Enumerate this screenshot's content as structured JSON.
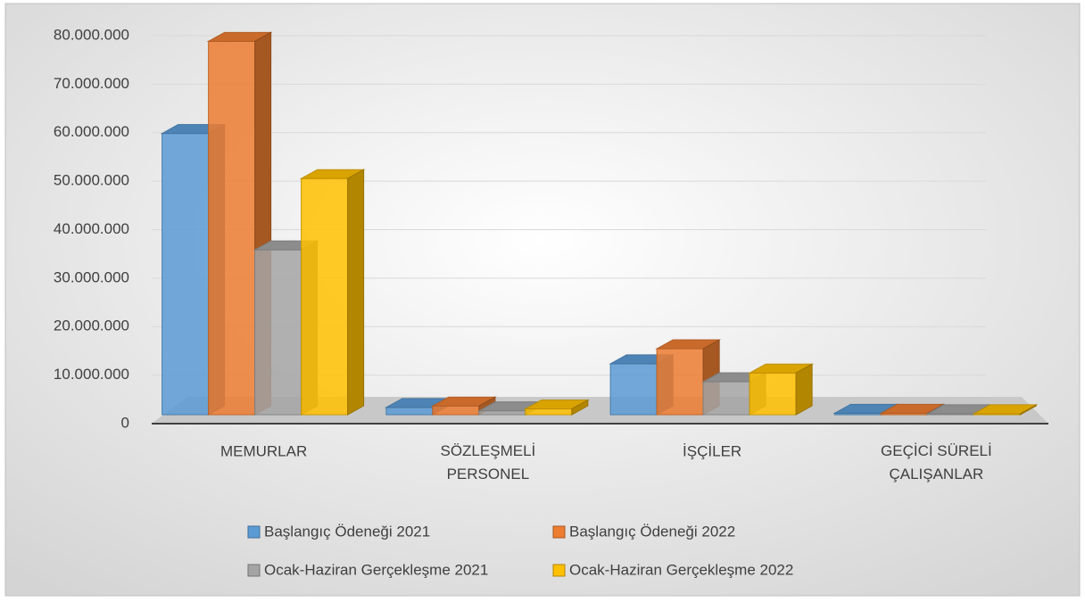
{
  "chart_data": {
    "type": "bar3d",
    "categories": [
      "MEMURLAR",
      "SÖZLEŞMELİ PERSONEL",
      "İŞÇİLER",
      "GEÇİCİ SÜRELİ ÇALIŞANLAR"
    ],
    "series": [
      {
        "name": "Başlangıç Ödeneği 2021",
        "color": "#5B9BD5",
        "values": [
          58000000,
          1500000,
          10500000,
          300000
        ]
      },
      {
        "name": "Başlangıç Ödeneği 2022",
        "color": "#ED7D31",
        "values": [
          77000000,
          1800000,
          13600000,
          300000
        ]
      },
      {
        "name": "Ocak-Haziran Gerçekleşme 2021",
        "color": "#A5A5A5",
        "values": [
          34000000,
          800000,
          6800000,
          200000
        ]
      },
      {
        "name": "Ocak-Haziran Gerçekleşme 2022",
        "color": "#FFC000",
        "values": [
          48700000,
          1200000,
          8600000,
          200000
        ]
      }
    ],
    "ylim": [
      0,
      80000000
    ],
    "yticks": [
      0,
      {
        "value": 10000000,
        "label": "10.000.000"
      },
      {
        "value": 20000000,
        "label": "20.000.000"
      },
      {
        "value": 30000000,
        "label": "30.000.000"
      },
      {
        "value": 40000000,
        "label": "40.000.000"
      },
      {
        "value": 50000000,
        "label": "50.000.000"
      },
      {
        "value": 60000000,
        "label": "60.000.000"
      },
      {
        "value": 70000000,
        "label": "70.000.000"
      },
      {
        "value": 80000000,
        "label": "80.000.000"
      }
    ],
    "grid": true
  }
}
